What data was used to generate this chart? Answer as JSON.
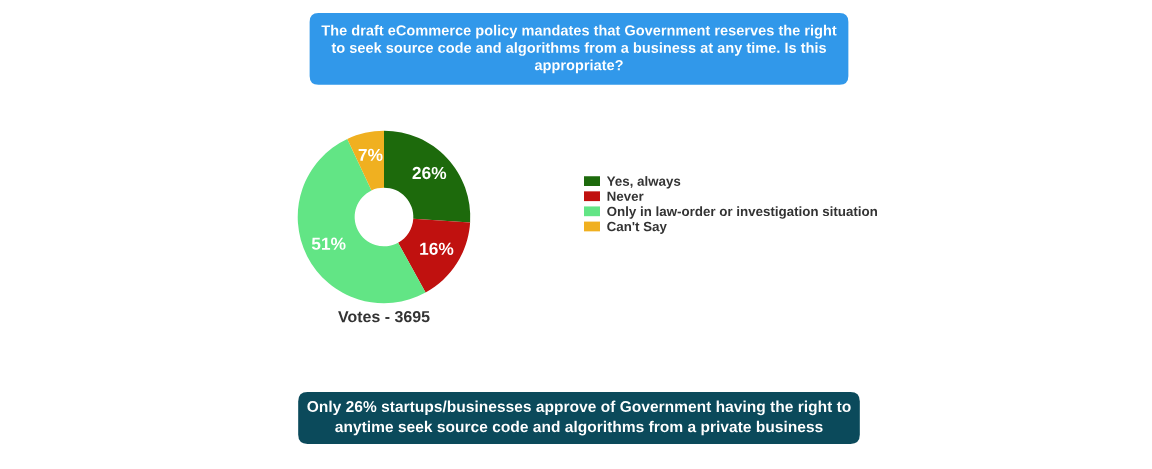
{
  "chart_data": {
    "type": "donut",
    "title": "The draft eCommerce policy mandates that Government reserves the right to seek source code and algorithms from a business at any time. Is this appropriate?",
    "categories": [
      "Yes, always",
      "Never",
      "Only in law-order or investigation situation",
      "Can't Say"
    ],
    "values": [
      26,
      16,
      51,
      7
    ],
    "colors": [
      "#1d6a0c",
      "#c0110f",
      "#62e585",
      "#f0b020"
    ],
    "value_labels": [
      "26%",
      "16%",
      "51%",
      "7%"
    ],
    "legend": "right",
    "annotations": [
      "Votes - 3695",
      "Only 26% startups/businesses approve of Government having the right to anytime seek source code and algorithms from a private business"
    ]
  }
}
